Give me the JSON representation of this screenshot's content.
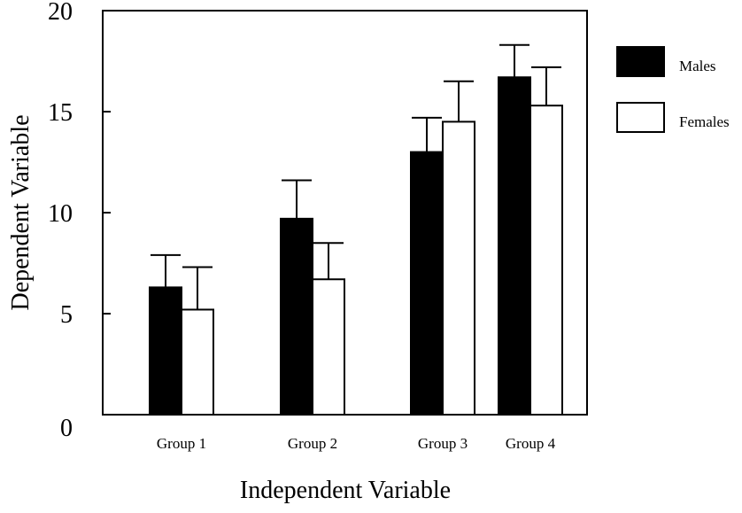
{
  "chart_data": {
    "type": "bar",
    "title": "",
    "xlabel": "Independent Variable",
    "ylabel": "Dependent Variable",
    "categories": [
      "Group 1",
      "Group 2",
      "Group 3",
      "Group 4"
    ],
    "ylim": [
      0,
      20
    ],
    "yticks": [
      "0",
      "5",
      "10",
      "15",
      "20"
    ],
    "series": [
      {
        "name": "Males",
        "color": "#000000",
        "values": [
          6.3,
          9.7,
          13.0,
          16.7
        ],
        "errors": [
          1.6,
          1.9,
          1.7,
          1.6
        ]
      },
      {
        "name": "Females",
        "color": "#ffffff",
        "values": [
          5.2,
          6.7,
          14.5,
          15.3
        ],
        "errors": [
          2.1,
          1.8,
          2.0,
          1.9
        ]
      }
    ],
    "legend_position": "top-right",
    "grid": false
  }
}
